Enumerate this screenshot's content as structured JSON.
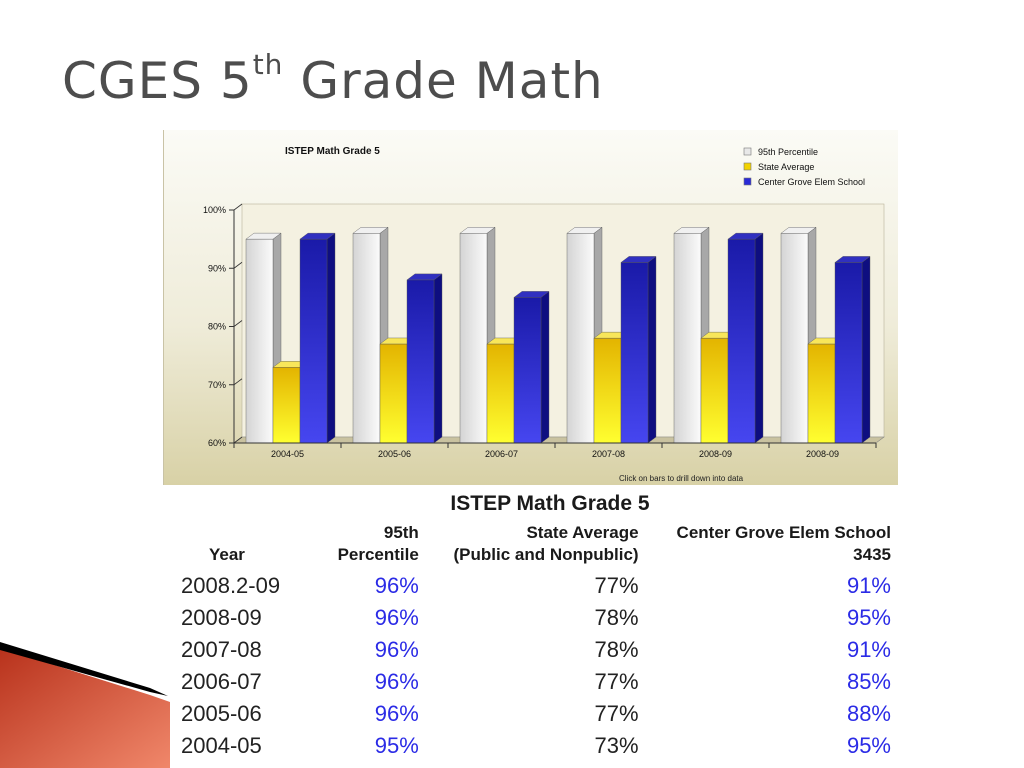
{
  "slide": {
    "title_main": "CGES 5",
    "title_sup": "th",
    "title_rest": " Grade Math"
  },
  "chart_data": {
    "type": "bar",
    "title": "ISTEP Math Grade 5",
    "categories": [
      "2004-05",
      "2005-06",
      "2006-07",
      "2007-08",
      "2008-09",
      "2008-09"
    ],
    "series": [
      {
        "name": "95th Percentile",
        "values": [
          95,
          96,
          96,
          96,
          96,
          96
        ],
        "color": "#e4e4e4"
      },
      {
        "name": "State Average",
        "values": [
          73,
          77,
          77,
          78,
          78,
          77
        ],
        "color": "#f2d300"
      },
      {
        "name": "Center Grove Elem School",
        "values": [
          95,
          88,
          85,
          91,
          95,
          91
        ],
        "color": "#2a2ad6"
      }
    ],
    "ylim": [
      60,
      100
    ],
    "yticks": [
      60,
      70,
      80,
      90,
      100
    ],
    "ytick_labels": [
      "60%",
      "70%",
      "80%",
      "90%",
      "100%"
    ],
    "legend_position": "top-right",
    "grid": false,
    "footnote": "Click on bars to drill down into data"
  },
  "table": {
    "title": "ISTEP Math Grade 5",
    "headers": [
      {
        "line1": "Year",
        "line2": ""
      },
      {
        "line1": "95th",
        "line2": "Percentile"
      },
      {
        "line1": "State Average",
        "line2": "(Public and Nonpublic)"
      },
      {
        "line1": "Center Grove Elem School",
        "line2": "3435"
      }
    ],
    "rows": [
      [
        "2008.2-09",
        "96%",
        "77%",
        "91%"
      ],
      [
        "2008-09",
        "96%",
        "78%",
        "95%"
      ],
      [
        "2007-08",
        "96%",
        "78%",
        "91%"
      ],
      [
        "2006-07",
        "96%",
        "77%",
        "85%"
      ],
      [
        "2005-06",
        "96%",
        "77%",
        "88%"
      ],
      [
        "2004-05",
        "95%",
        "73%",
        "95%"
      ]
    ]
  }
}
